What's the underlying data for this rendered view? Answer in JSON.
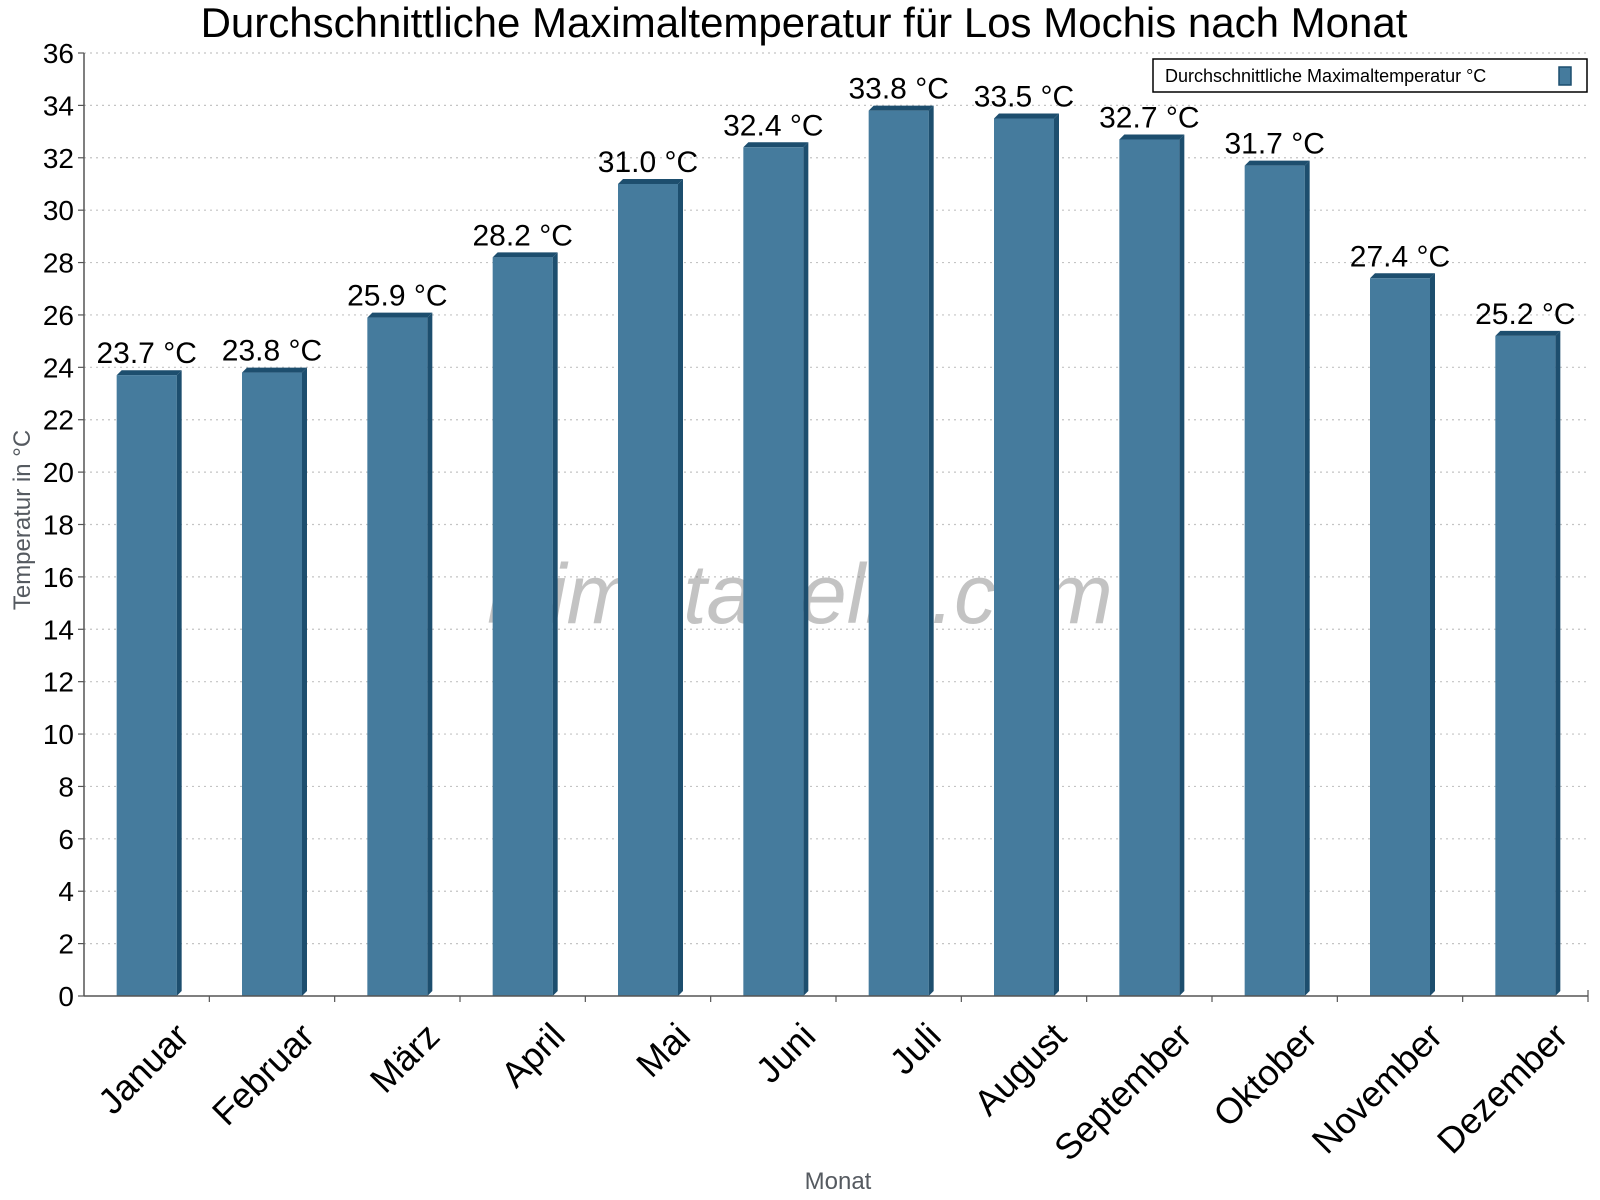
{
  "chart_data": {
    "type": "bar",
    "title": "Durchschnittliche Maximaltemperatur für Los Mochis nach Monat",
    "xlabel": "Monat",
    "ylabel": "Temperatur in °C",
    "ylim": [
      0,
      36
    ],
    "ytick_step": 2,
    "grid": true,
    "legend_position": "top-right",
    "categories": [
      "Januar",
      "Februar",
      "März",
      "April",
      "Mai",
      "Juni",
      "Juli",
      "August",
      "September",
      "Oktober",
      "November",
      "Dezember"
    ],
    "series": [
      {
        "name": "Durchschnittliche Maximaltemperatur °C",
        "values": [
          23.7,
          23.8,
          25.9,
          28.2,
          31.0,
          32.4,
          33.8,
          33.5,
          32.7,
          31.7,
          27.4,
          25.2
        ],
        "labels": [
          "23.7 °C",
          "23.8 °C",
          "25.9 °C",
          "28.2 °C",
          "31.0 °C",
          "32.4 °C",
          "33.8 °C",
          "33.5 °C",
          "32.7 °C",
          "31.7 °C",
          "27.4 °C",
          "25.2 °C"
        ],
        "color": "#457b9d",
        "edge_color": "#1d4e6e"
      }
    ],
    "watermark": "klimatabelle.com"
  }
}
